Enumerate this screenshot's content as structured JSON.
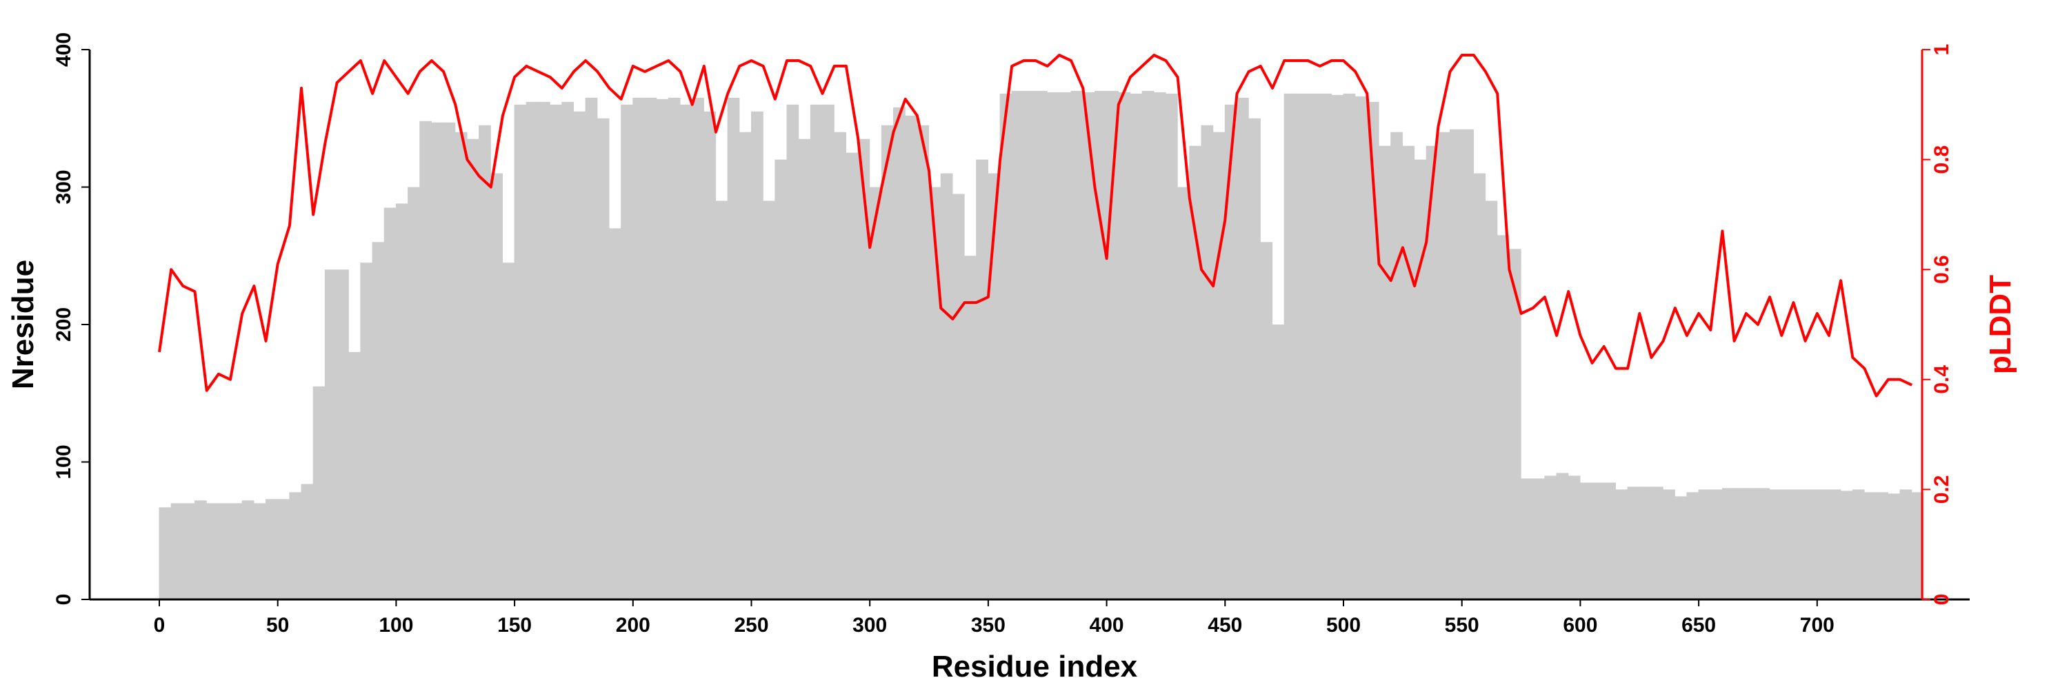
{
  "chart_data": {
    "type": "bar+line",
    "xlabel": "Residue index",
    "ylabel": "Nresidue",
    "y2label": "pLDDT",
    "xlim": [
      -29,
      748
    ],
    "ylim": [
      0,
      400
    ],
    "y2lim": [
      0,
      1
    ],
    "x_ticks": [
      "0",
      "50",
      "100",
      "150",
      "200",
      "250",
      "300",
      "350",
      "400",
      "450",
      "500",
      "550",
      "600",
      "650",
      "700"
    ],
    "y_ticks": [
      "0",
      "100",
      "200",
      "300",
      "400"
    ],
    "y2_ticks": [
      "0",
      "0.2",
      "0.4",
      "0.6",
      "0.8",
      "1"
    ],
    "grid": false,
    "bin_step": 5,
    "colors": {
      "bars": "#cccccc",
      "line": "#ff0000",
      "axis": "#000000",
      "axis2": "#ff0000"
    },
    "series": [
      {
        "name": "Nresidue",
        "kind": "bar",
        "x_start": 0,
        "values": [
          67,
          70,
          70,
          72,
          70,
          70,
          70,
          72,
          70,
          73,
          73,
          78,
          84,
          155,
          240,
          240,
          180,
          245,
          260,
          285,
          288,
          300,
          348,
          347,
          347,
          340,
          335,
          345,
          310,
          245,
          360,
          362,
          362,
          360,
          362,
          355,
          365,
          350,
          270,
          360,
          365,
          365,
          364,
          365,
          360,
          365,
          355,
          290,
          365,
          340,
          355,
          290,
          320,
          360,
          335,
          360,
          360,
          340,
          325,
          335,
          300,
          345,
          358,
          352,
          345,
          300,
          310,
          295,
          250,
          320,
          310,
          368,
          370,
          370,
          370,
          369,
          369,
          370,
          369,
          370,
          370,
          369,
          368,
          370,
          369,
          368,
          300,
          330,
          345,
          340,
          360,
          365,
          350,
          260,
          200,
          368,
          368,
          368,
          368,
          367,
          368,
          366,
          362,
          330,
          340,
          330,
          320,
          330,
          340,
          342,
          342,
          310,
          290,
          265,
          255,
          88,
          88,
          90,
          92,
          90,
          85,
          85,
          85,
          80,
          82,
          82,
          82,
          80,
          75,
          78,
          80,
          80,
          81,
          81,
          81,
          81,
          80,
          80,
          80,
          80,
          80,
          80,
          79,
          80,
          78,
          78,
          77,
          80,
          78
        ]
      },
      {
        "name": "pLDDT",
        "kind": "line",
        "x_start": 0,
        "values": [
          0.45,
          0.6,
          0.57,
          0.56,
          0.38,
          0.41,
          0.4,
          0.52,
          0.57,
          0.47,
          0.61,
          0.68,
          0.93,
          0.7,
          0.83,
          0.94,
          0.96,
          0.98,
          0.92,
          0.98,
          0.95,
          0.92,
          0.96,
          0.98,
          0.96,
          0.9,
          0.8,
          0.77,
          0.75,
          0.88,
          0.95,
          0.97,
          0.96,
          0.95,
          0.93,
          0.96,
          0.98,
          0.96,
          0.93,
          0.91,
          0.97,
          0.96,
          0.97,
          0.98,
          0.96,
          0.9,
          0.97,
          0.85,
          0.92,
          0.97,
          0.98,
          0.97,
          0.91,
          0.98,
          0.98,
          0.97,
          0.92,
          0.97,
          0.97,
          0.84,
          0.64,
          0.75,
          0.85,
          0.91,
          0.88,
          0.78,
          0.53,
          0.51,
          0.54,
          0.54,
          0.55,
          0.8,
          0.97,
          0.98,
          0.98,
          0.97,
          0.99,
          0.98,
          0.93,
          0.75,
          0.62,
          0.9,
          0.95,
          0.97,
          0.99,
          0.98,
          0.95,
          0.73,
          0.6,
          0.57,
          0.69,
          0.92,
          0.96,
          0.97,
          0.93,
          0.98,
          0.98,
          0.98,
          0.97,
          0.98,
          0.98,
          0.96,
          0.92,
          0.61,
          0.58,
          0.64,
          0.57,
          0.65,
          0.86,
          0.96,
          0.99,
          0.99,
          0.96,
          0.92,
          0.6,
          0.52,
          0.53,
          0.55,
          0.48,
          0.56,
          0.48,
          0.43,
          0.46,
          0.42,
          0.42,
          0.52,
          0.44,
          0.47,
          0.53,
          0.48,
          0.52,
          0.49,
          0.67,
          0.47,
          0.52,
          0.5,
          0.55,
          0.48,
          0.54,
          0.47,
          0.52,
          0.48,
          0.58,
          0.44,
          0.42,
          0.37,
          0.4,
          0.4,
          0.39
        ]
      }
    ]
  }
}
